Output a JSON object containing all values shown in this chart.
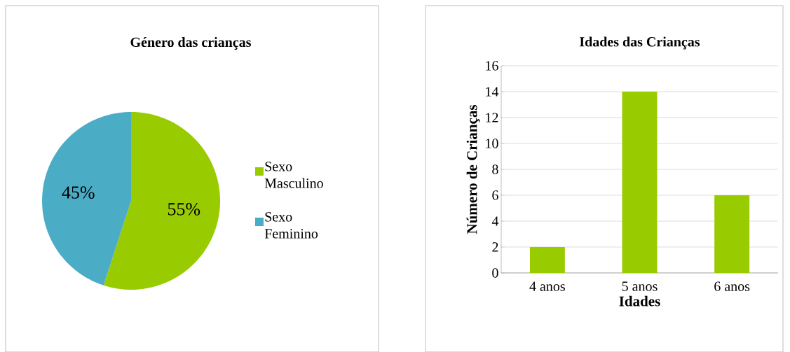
{
  "chart_data": [
    {
      "type": "pie",
      "title": "Género das crianças",
      "categories": [
        "Sexo Masculino",
        "Sexo Feminino"
      ],
      "values": [
        55,
        45
      ],
      "colors": [
        "#99cc00",
        "#4bacc6"
      ],
      "value_labels": [
        "55%",
        "45%"
      ],
      "legend": "right"
    },
    {
      "type": "bar",
      "title": "Idades das Crianças",
      "xlabel": "Idades",
      "ylabel": "Número de Crianças",
      "categories": [
        "4 anos",
        "5 anos",
        "6 anos"
      ],
      "values": [
        2,
        14,
        6
      ],
      "color": "#99cc00",
      "ylim": [
        0,
        16
      ],
      "yticks": [
        0,
        2,
        4,
        6,
        8,
        10,
        12,
        14,
        16
      ],
      "grid": "y"
    }
  ]
}
